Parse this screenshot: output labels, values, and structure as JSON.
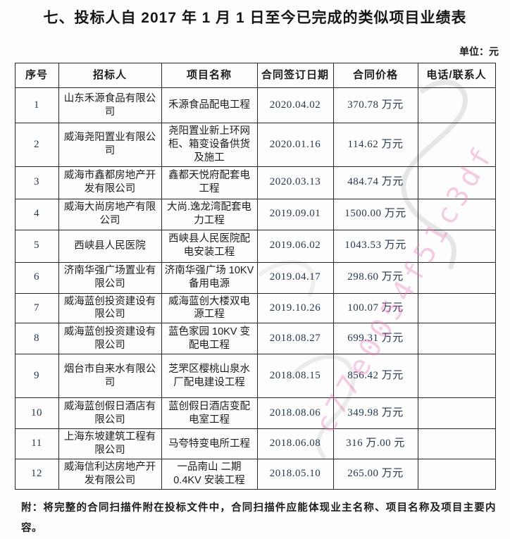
{
  "page": {
    "title": "七、投标人自 2017 年 1 月 1 日至今已完成的类似项目业绩表",
    "unit_label": "单位：元",
    "footnote": "附：将完整的合同扫描件附在投标文件中，合同扫描件应能体现业主名称、项目名称及项目主要内容。",
    "watermark": "c77e0054f51c3df"
  },
  "colors": {
    "text": "#1c1c1c",
    "numeric_text": "#26384e",
    "border": "#262626",
    "watermark_pink": "#e779b7",
    "watermark_gray": "#dcdcdc"
  },
  "table": {
    "headers": [
      "序号",
      "招标人",
      "项目名称",
      "合同签订日期",
      "合同价格",
      "电话/联系人"
    ],
    "rows": [
      {
        "no": "1",
        "tenderer": "山东禾源食品有限公司",
        "project": "禾源食品配电工程",
        "date": "2020.04.02",
        "price": "370.78 万元",
        "contact": ""
      },
      {
        "no": "2",
        "tenderer": "威海尧阳置业有限公司",
        "project": "尧阳置业新上环网柜、箱变设备供货及施工",
        "date": "2020.01.16",
        "price": "114.62 万元",
        "contact": ""
      },
      {
        "no": "3",
        "tenderer": "威海市鑫都房地产开发有限公司",
        "project": "鑫都天悦府配套电工程",
        "date": "2020.03.13",
        "price": "484.74 万元",
        "contact": ""
      },
      {
        "no": "4",
        "tenderer": "威海大尚房地产有限公司",
        "project": "大尚.逸龙湾配套电力工程",
        "date": "2019.09.01",
        "price": "1500.00 万元",
        "contact": ""
      },
      {
        "no": "5",
        "tenderer": "西峡县人民医院",
        "project": "西峡县人民医院配电安装工程",
        "date": "2019.06.02",
        "price": "1043.53 万元",
        "contact": ""
      },
      {
        "no": "6",
        "tenderer": "济南华强广场置业有限公司",
        "project": "济南华强广场 10KV 备用电源",
        "date": "2019.04.17",
        "price": "298.60 万元",
        "contact": ""
      },
      {
        "no": "7",
        "tenderer": "威海蓝创投资建设有限公司",
        "project": "威海蓝创大楼双电源工程",
        "date": "2019.10.26",
        "price": "100.07 万元",
        "contact": ""
      },
      {
        "no": "8",
        "tenderer": "威海蓝创投资建设有限公司",
        "project": "蓝色家园 10KV 变配电工程",
        "date": "2018.08.27",
        "price": "699.31 万元",
        "contact": ""
      },
      {
        "no": "9",
        "tenderer": "烟台市自来水有限公司",
        "project": "芝罘区樱桃山泉水厂配电建设工程",
        "date": "2018.08.15",
        "price": "856.42 万元",
        "contact": ""
      },
      {
        "no": "10",
        "tenderer": "威海蓝创假日酒店有限公司",
        "project": "蓝创假日酒店变配电室工程",
        "date": "2018.08.06",
        "price": "349.98 万元",
        "contact": ""
      },
      {
        "no": "11",
        "tenderer": "上海东坡建筑工程有限公司",
        "project": "马夸特变电所工程",
        "date": "2018.06.08",
        "price": "316 万.00 元",
        "contact": ""
      },
      {
        "no": "12",
        "tenderer": "威海信利达房地产开发有限公司",
        "project": "一品南山 二期 0.4KV 安装工程",
        "date": "2018.05.10",
        "price": "265.00 万元",
        "contact": ""
      }
    ]
  }
}
